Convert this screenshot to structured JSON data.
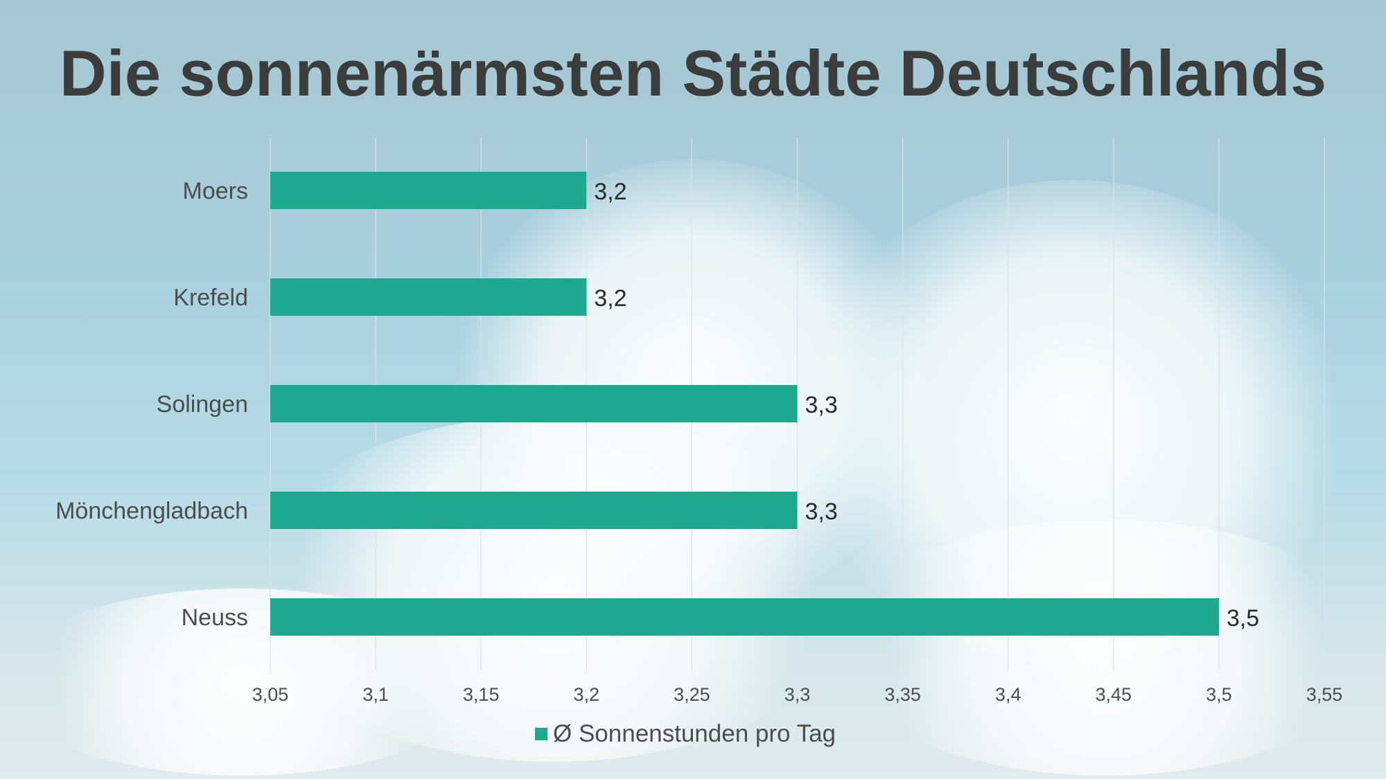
{
  "chart_data": {
    "type": "bar",
    "orientation": "horizontal",
    "title": "Die sonnenärmsten Städte Deutschlands",
    "categories": [
      "Moers",
      "Krefeld",
      "Solingen",
      "Mönchengladbach",
      "Neuss"
    ],
    "series": [
      {
        "name": "Ø Sonnenstunden pro Tag",
        "values": [
          3.2,
          3.2,
          3.3,
          3.3,
          3.5
        ],
        "color": "#1fa890"
      }
    ],
    "data_labels": [
      "3,2",
      "3,2",
      "3,3",
      "3,3",
      "3,5"
    ],
    "xlim": [
      3.05,
      3.55
    ],
    "xticks": [
      3.05,
      3.1,
      3.15,
      3.2,
      3.25,
      3.3,
      3.35,
      3.4,
      3.45,
      3.5,
      3.55
    ],
    "xtick_labels": [
      "3,05",
      "3,1",
      "3,15",
      "3,2",
      "3,25",
      "3,3",
      "3,35",
      "3,4",
      "3,45",
      "3,5",
      "3,55"
    ],
    "grid": "vertical",
    "legend": "bottom",
    "xlabel": "",
    "ylabel": ""
  }
}
